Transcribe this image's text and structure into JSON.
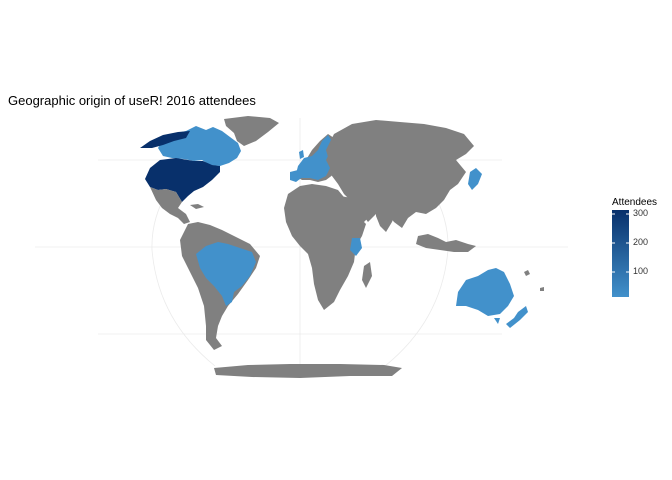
{
  "title": "Geographic origin of useR! 2016 attendees",
  "legend": {
    "title": "Attendees",
    "ticks": [
      "300",
      "200",
      "100"
    ],
    "tick_values": [
      300,
      200,
      100
    ],
    "min": 20,
    "max": 320,
    "color_low": "#4291cb",
    "color_high": "#08306b"
  },
  "colors": {
    "no_data": "#808080",
    "background": "#ffffff",
    "graticule": "#ebebeb"
  },
  "chart_data": {
    "type": "choropleth",
    "title": "Geographic origin of useR! 2016 attendees",
    "fill_variable": "Attendees",
    "highlighted_regions": [
      {
        "name": "United States",
        "level": "highest"
      },
      {
        "name": "Canada",
        "level": "low"
      },
      {
        "name": "Brazil",
        "level": "low"
      },
      {
        "name": "Australia",
        "level": "low"
      },
      {
        "name": "New Zealand",
        "level": "low"
      },
      {
        "name": "Western Europe",
        "level": "low"
      },
      {
        "name": "Japan",
        "level": "low"
      },
      {
        "name": "Kenya",
        "level": "low"
      }
    ]
  }
}
